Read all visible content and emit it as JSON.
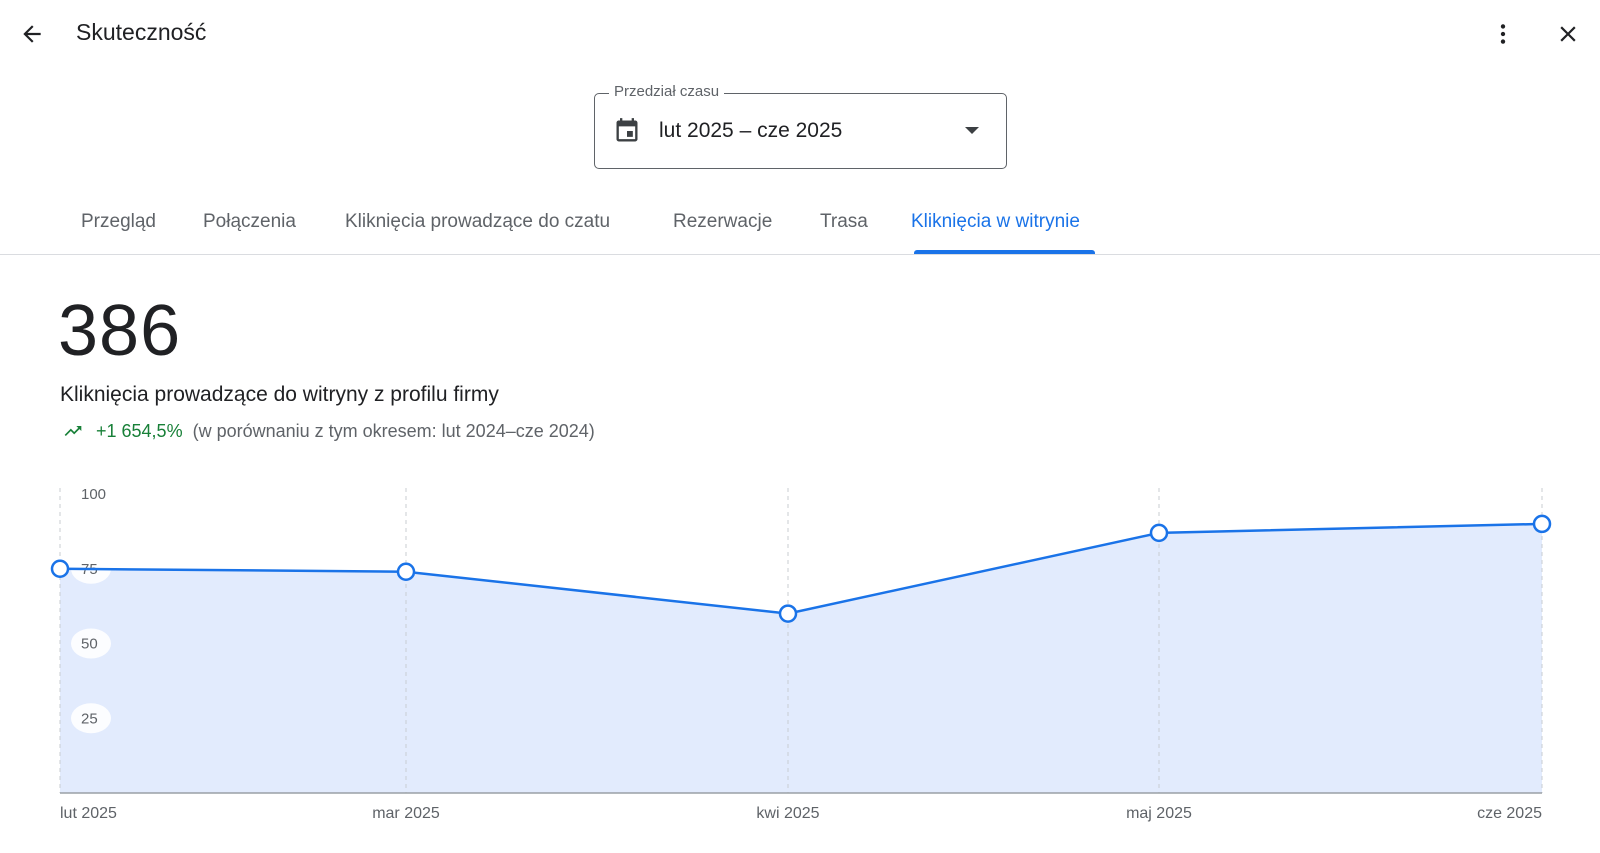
{
  "header": {
    "title": "Skuteczność",
    "back_icon": "arrow-back-icon",
    "more_icon": "more-vert-icon",
    "close_icon": "close-icon"
  },
  "date_range": {
    "legend": "Przedział czasu",
    "value": "lut 2025 – cze 2025",
    "calendar_icon": "calendar-icon",
    "dropdown_icon": "arrow-drop-down-icon"
  },
  "tabs": [
    {
      "label": "Przegląd",
      "active": false
    },
    {
      "label": "Połączenia",
      "active": false
    },
    {
      "label": "Kliknięcia prowadzące do czatu",
      "active": false
    },
    {
      "label": "Rezerwacje",
      "active": false
    },
    {
      "label": "Trasa",
      "active": false
    },
    {
      "label": "Kliknięcia w witrynie",
      "active": true
    }
  ],
  "summary": {
    "total": "386",
    "label": "Kliknięcia prowadzące do witryny z profilu firmy",
    "trend_icon": "trending-up-icon",
    "change": "+1 654,5%",
    "comparison": "(w porównaniu z tym okresem: lut 2024–cze 2024)"
  },
  "colors": {
    "accent": "#1a73e8",
    "positive": "#188038",
    "area_fill": "#e2ebfd"
  },
  "chart_data": {
    "type": "area",
    "categories": [
      "lut 2025",
      "mar 2025",
      "kwi 2025",
      "maj 2025",
      "cze 2025"
    ],
    "values": [
      75,
      74,
      60,
      87,
      90
    ],
    "y_ticks": [
      "100",
      "75",
      "50",
      "25"
    ],
    "y_tick_values": [
      100,
      75,
      50,
      25
    ],
    "ylim": [
      0,
      100
    ],
    "grid": "vertical-dashed",
    "legend": "none"
  }
}
